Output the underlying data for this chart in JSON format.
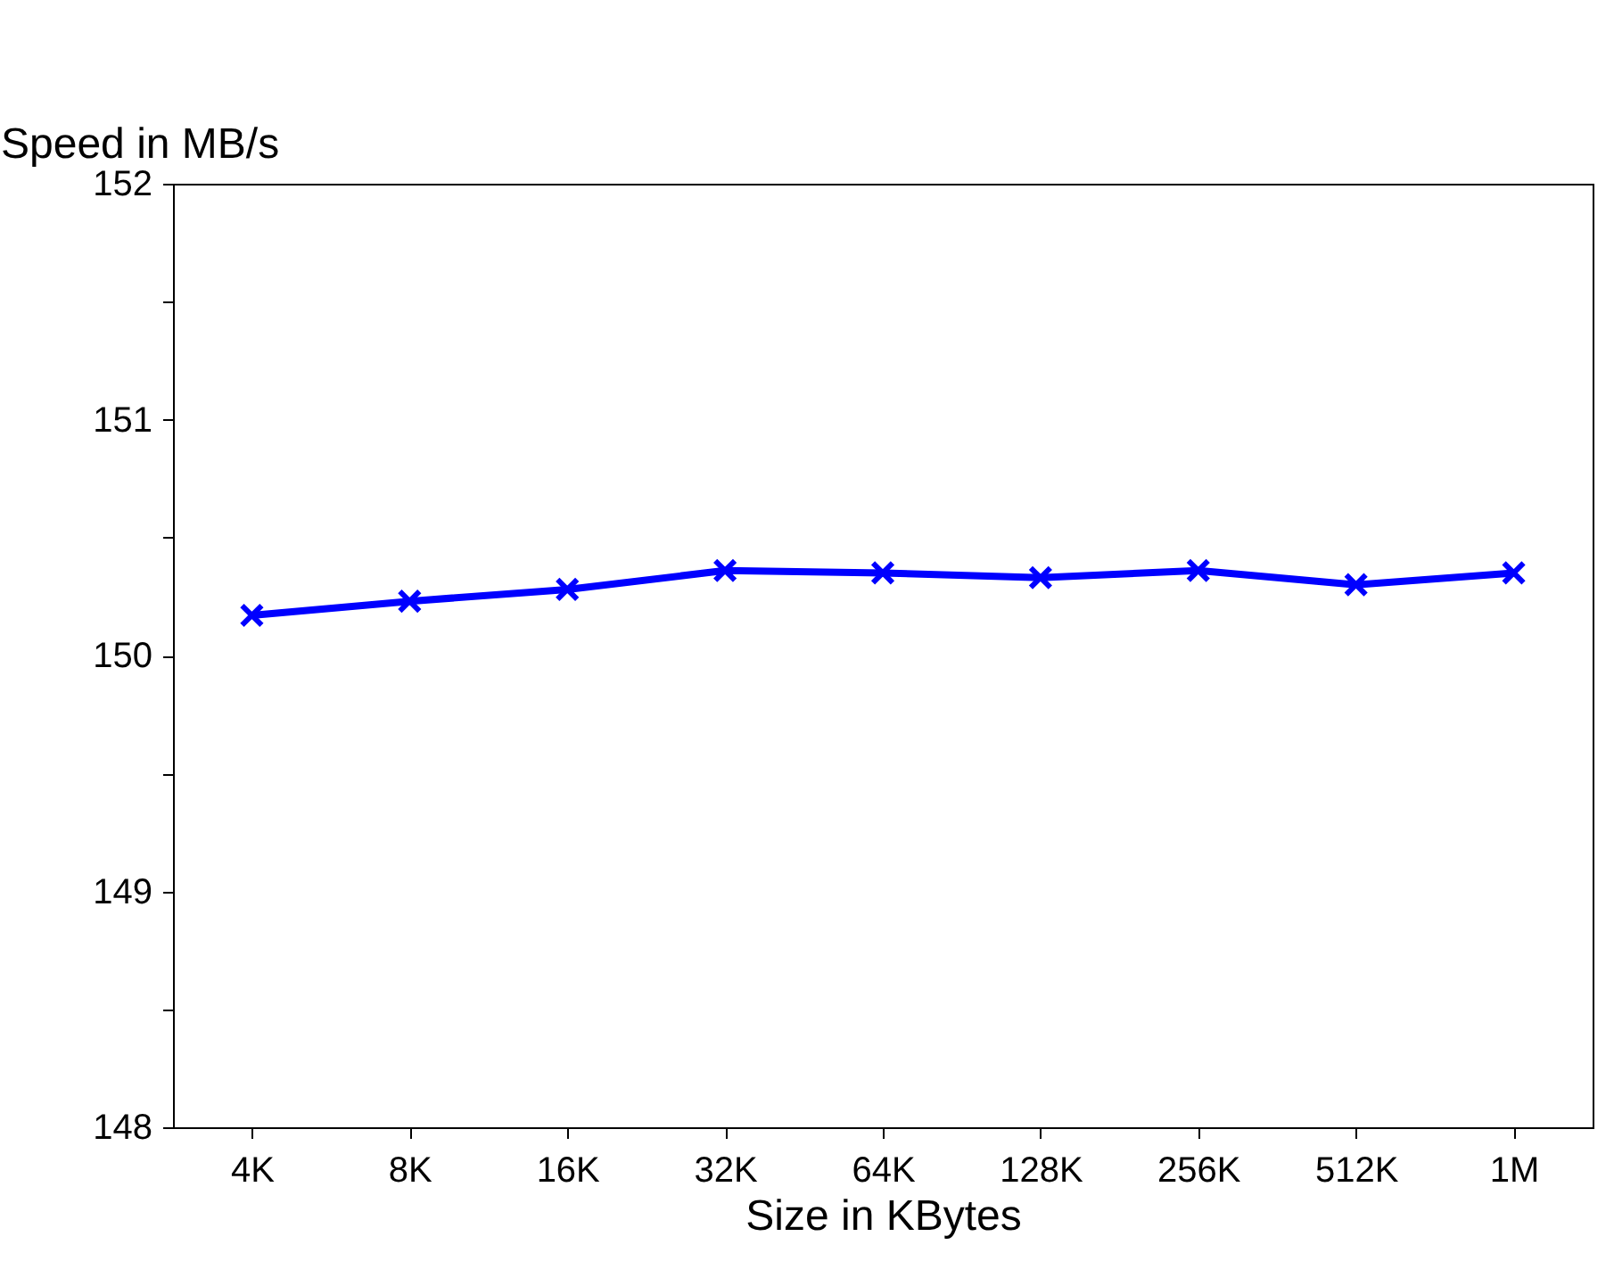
{
  "chart_data": {
    "type": "line",
    "xlabel": "Size in KBytes",
    "ylabel": "Speed in MB/s",
    "categories": [
      "4K",
      "8K",
      "16K",
      "32K",
      "64K",
      "128K",
      "256K",
      "512K",
      "1M"
    ],
    "series": [
      {
        "color": "#0000ff",
        "values": [
          150.17,
          150.23,
          150.28,
          150.36,
          150.35,
          150.33,
          150.36,
          150.3,
          150.35
        ]
      }
    ],
    "ylim": [
      148,
      152
    ],
    "yticks": [
      148,
      {
        "value": 148.5,
        "label": null
      },
      149,
      {
        "value": 149.5,
        "label": null
      },
      150,
      {
        "value": 150.5,
        "label": null
      },
      151,
      {
        "value": 151.5,
        "label": null
      },
      152
    ],
    "grid": false,
    "marker": "cross",
    "line_style": "solid"
  }
}
